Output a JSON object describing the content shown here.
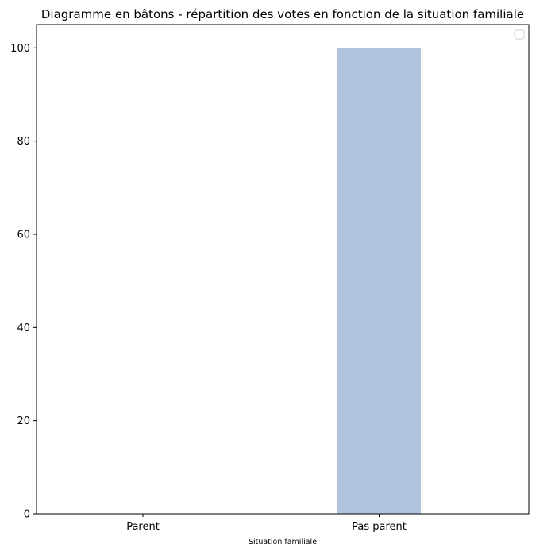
{
  "chart_data": {
    "type": "bar",
    "title": "Diagramme en bâtons - répartition des votes en fonction de la situation familiale",
    "xlabel": "Situation familiale",
    "ylabel": "",
    "categories": [
      "Parent",
      "Pas parent"
    ],
    "values": [
      0,
      100
    ],
    "ylim": [
      0,
      105
    ],
    "yticks": [
      0,
      20,
      40,
      60,
      80,
      100
    ],
    "bar_color": "#b0c4de",
    "grid": false,
    "legend": {
      "placement": "top-right",
      "entries": []
    }
  }
}
